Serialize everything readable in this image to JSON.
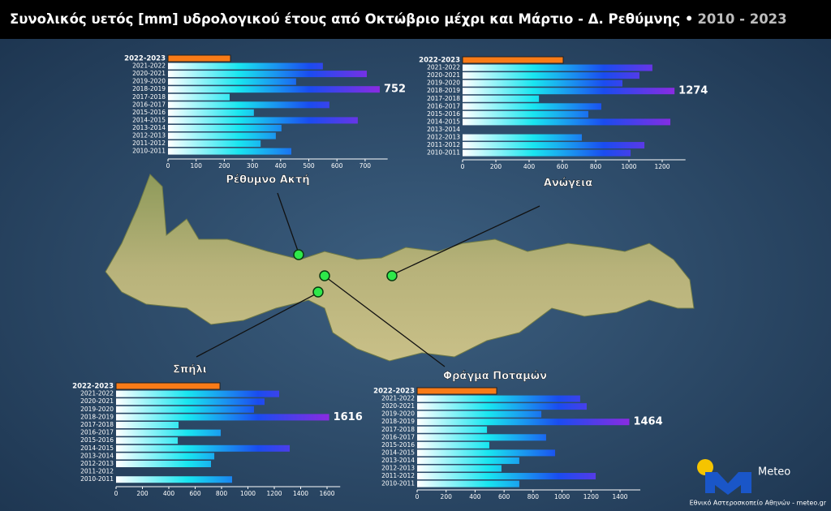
{
  "header": {
    "title": "Συνολικός υετός [mm] υδρολογικού έτους από Οκτώβριο μέχρι και Μάρτιο - Δ. Ρεθύμνης •",
    "years": "2010 - 2023"
  },
  "footer": {
    "logo": "Meteo",
    "credit": "Εθνικό Αστεροσκοπείο Αθηνών - meteo.gr"
  },
  "chart_data": [
    {
      "type": "bar",
      "orientation": "horizontal",
      "title": "Ρέθυμνο Ακτή",
      "categories": [
        "2022-2023",
        "2021-2022",
        "2020-2021",
        "2019-2020",
        "2018-2019",
        "2017-2018",
        "2016-2017",
        "2015-2016",
        "2014-2015",
        "2013-2014",
        "2012-2013",
        "2011-2012",
        "2010-2011"
      ],
      "values": [
        222,
        550,
        706,
        455,
        752,
        219,
        573,
        305,
        674,
        403,
        383,
        329,
        438
      ],
      "xlim": [
        0,
        780
      ],
      "xticks": [
        0,
        100,
        200,
        300,
        400,
        500,
        600,
        700
      ],
      "highlight_color": "#f97b17",
      "color_scale": [
        "#ffffff",
        "#19e6f0",
        "#1a4cf0",
        "#8a2be2"
      ]
    },
    {
      "type": "bar",
      "orientation": "horizontal",
      "title": "Ανώγεια",
      "categories": [
        "2022-2023",
        "2021-2022",
        "2020-2021",
        "2019-2020",
        "2018-2019",
        "2017-2018",
        "2016-2017",
        "2015-2016",
        "2014-2015",
        "2013-2014",
        "2012-2013",
        "2011-2012",
        "2010-2011"
      ],
      "values": [
        605,
        1141,
        1063,
        961,
        1274,
        459,
        834,
        756,
        1249,
        null,
        717,
        1093,
        1010
      ],
      "xlim": [
        0,
        1340
      ],
      "xticks": [
        0,
        200,
        400,
        600,
        800,
        1000,
        1200
      ],
      "highlight_color": "#f97b17",
      "color_scale": [
        "#ffffff",
        "#19e6f0",
        "#1a4cf0",
        "#8a2be2"
      ]
    },
    {
      "type": "bar",
      "orientation": "horizontal",
      "title": "Σπήλι",
      "categories": [
        "2022-2023",
        "2021-2022",
        "2020-2021",
        "2019-2020",
        "2018-2019",
        "2017-2018",
        "2016-2017",
        "2015-2016",
        "2014-2015",
        "2013-2014",
        "2012-2013",
        "2011-2012",
        "2010-2011"
      ],
      "values": [
        788,
        1237,
        1126,
        1046,
        1616,
        474,
        794,
        468,
        1317,
        745,
        720,
        null,
        880
      ],
      "xlim": [
        0,
        1700
      ],
      "xticks": [
        0,
        200,
        400,
        600,
        800,
        1000,
        1200,
        1400,
        1600
      ],
      "highlight_color": "#f97b17",
      "color_scale": [
        "#ffffff",
        "#19e6f0",
        "#1a4cf0",
        "#8a2be2"
      ]
    },
    {
      "type": "bar",
      "orientation": "horizontal",
      "title": "Φράγμα Ποταμών",
      "categories": [
        "2022-2023",
        "2021-2022",
        "2020-2021",
        "2019-2020",
        "2018-2019",
        "2017-2018",
        "2016-2017",
        "2015-2016",
        "2014-2015",
        "2013-2014",
        "2012-2013",
        "2011-2012",
        "2010-2011"
      ],
      "values": [
        549,
        1125,
        1170,
        857,
        1464,
        482,
        890,
        498,
        952,
        705,
        582,
        1232,
        705
      ],
      "xlim": [
        0,
        1540
      ],
      "xticks": [
        0,
        200,
        400,
        600,
        800,
        1000,
        1200,
        1400
      ],
      "highlight_color": "#f97b17",
      "color_scale": [
        "#ffffff",
        "#19e6f0",
        "#1a4cf0",
        "#8a2be2"
      ]
    }
  ]
}
